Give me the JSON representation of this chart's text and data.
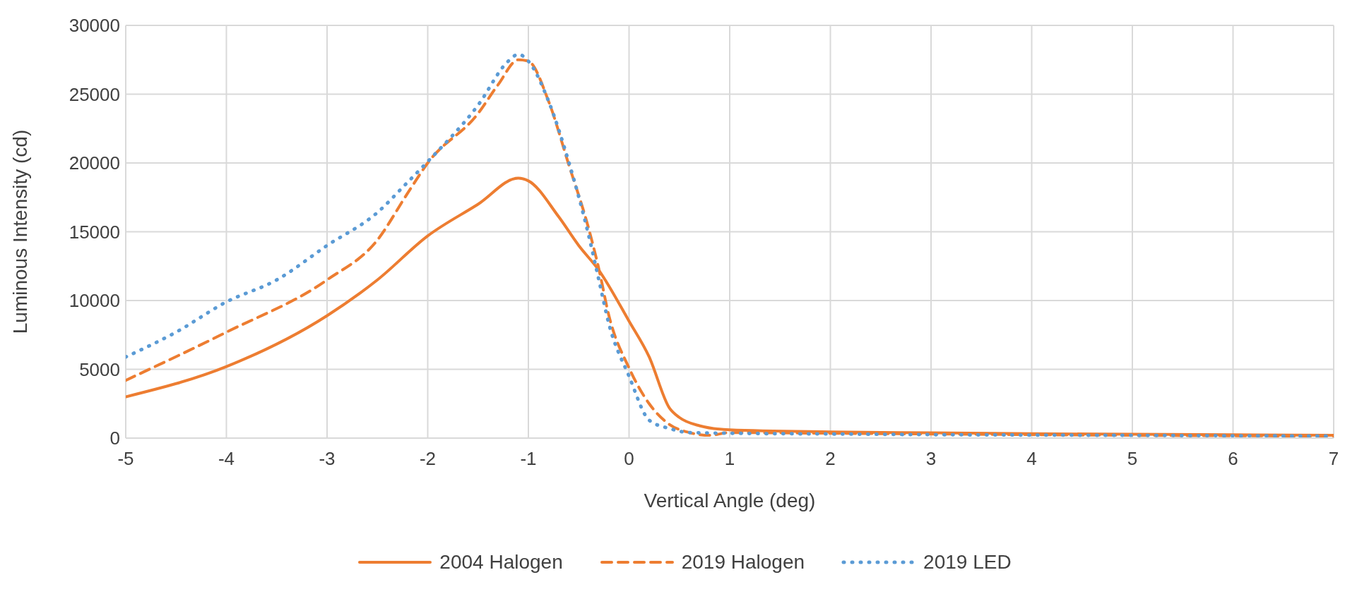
{
  "chart_data": {
    "type": "line",
    "xlabel": "Vertical Angle (deg)",
    "ylabel": "Luminous Intensity (cd)",
    "xlim": [
      -5,
      7
    ],
    "xticks": [
      -5,
      -4,
      -3,
      -2,
      -1,
      0,
      1,
      2,
      3,
      4,
      5,
      6,
      7
    ],
    "ylim": [
      0,
      30000
    ],
    "yticks": [
      0,
      5000,
      10000,
      15000,
      20000,
      25000,
      30000
    ],
    "grid": true,
    "legend": "bottom",
    "marker": "none",
    "series": [
      {
        "name": "2004 Halogen",
        "color": "#ed7d31",
        "line_style": "solid",
        "x": [
          -5,
          -4,
          -3,
          -2.5,
          -2,
          -1.5,
          -1.1,
          -1,
          -0.7,
          -0.5,
          -0.3,
          0,
          0.2,
          0.4,
          0.5,
          0.7,
          1,
          2,
          3,
          4,
          5,
          6,
          7
        ],
        "values": [
          3000,
          5200,
          8900,
          11500,
          14700,
          17000,
          18900,
          18700,
          16100,
          14000,
          12200,
          8500,
          5900,
          2200,
          1500,
          900,
          600,
          450,
          380,
          320,
          280,
          240,
          200
        ]
      },
      {
        "name": "2019 Halogen",
        "color": "#ed7d31",
        "line_style": "dashed",
        "x": [
          -5,
          -4,
          -3,
          -2.5,
          -2.2,
          -2,
          -1.5,
          -1.3,
          -1.1,
          -1,
          -0.8,
          -0.6,
          -0.4,
          -0.3,
          -0.2,
          0,
          0.2,
          0.4,
          0.6,
          0.8,
          1,
          2,
          3,
          4,
          5,
          6,
          7
        ],
        "values": [
          4200,
          7700,
          11500,
          14400,
          17800,
          20000,
          23600,
          25700,
          27500,
          27400,
          24500,
          19900,
          15200,
          12300,
          8900,
          5100,
          2500,
          1000,
          400,
          200,
          400,
          350,
          300,
          250,
          200,
          170,
          150
        ]
      },
      {
        "name": "2019 LED",
        "color": "#5b9bd5",
        "line_style": "dotted",
        "x": [
          -5,
          -4.5,
          -4,
          -3.5,
          -3,
          -2.5,
          -2.2,
          -2,
          -1.5,
          -1.2,
          -1.1,
          -1,
          -0.8,
          -0.6,
          -0.4,
          -0.3,
          -0.2,
          0,
          0.2,
          0.4,
          0.6,
          1,
          2,
          3,
          4,
          5,
          6,
          7
        ],
        "values": [
          5900,
          7700,
          9900,
          11500,
          14000,
          16400,
          18600,
          20100,
          24200,
          27400,
          27900,
          27400,
          24500,
          20100,
          14700,
          11500,
          8300,
          4500,
          1300,
          700,
          400,
          350,
          300,
          250,
          220,
          200,
          170,
          150
        ]
      }
    ]
  }
}
